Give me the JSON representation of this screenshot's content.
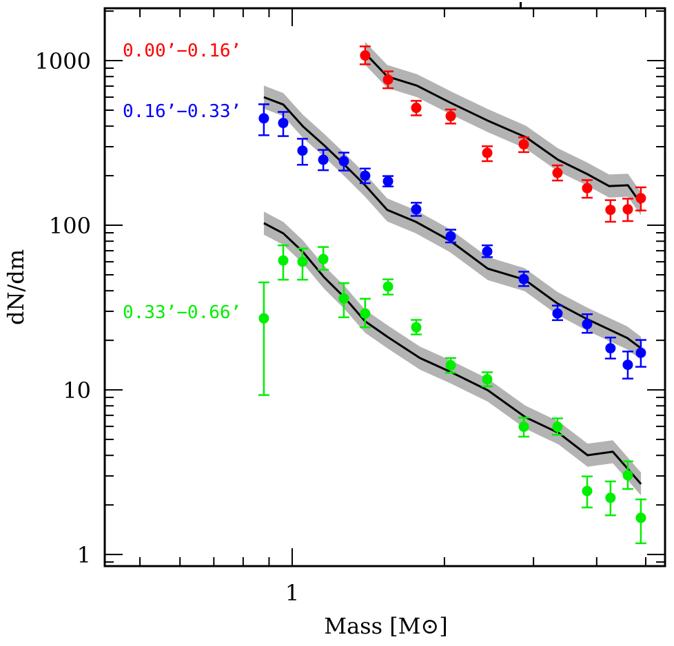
{
  "chart_data": {
    "type": "scatter",
    "title": "",
    "xlabel": "Mass [M⊙]",
    "ylabel": "dN/dm",
    "xscale": "log",
    "yscale": "log",
    "xlim": [
      0.426,
      5.46
    ],
    "ylim": [
      0.85,
      2080
    ],
    "x_ticks": [
      {
        "value": 1,
        "label": "1"
      }
    ],
    "x_minor_ticks": [
      0.5,
      0.6,
      0.7,
      0.8,
      0.9,
      2,
      3,
      4,
      5
    ],
    "y_ticks": [
      {
        "value": 1,
        "label": "1"
      },
      {
        "value": 10,
        "label": "10"
      },
      {
        "value": 100,
        "label": "100"
      },
      {
        "value": 1000,
        "label": "1000"
      }
    ],
    "grid": false,
    "legend_placement": "left, inline beside each series",
    "series": [
      {
        "name": "0.00’−0.16’",
        "color": "#ff0000",
        "points": [
          {
            "x": 1.394,
            "y": 1075,
            "lo": 950,
            "hi": 1220
          },
          {
            "x": 1.547,
            "y": 767,
            "lo": 680,
            "hi": 860
          },
          {
            "x": 1.759,
            "y": 517,
            "lo": 465,
            "hi": 570
          },
          {
            "x": 2.058,
            "y": 460,
            "lo": 415,
            "hi": 505
          },
          {
            "x": 2.43,
            "y": 275,
            "lo": 245,
            "hi": 302
          },
          {
            "x": 2.87,
            "y": 310,
            "lo": 278,
            "hi": 342
          },
          {
            "x": 3.346,
            "y": 208,
            "lo": 187,
            "hi": 231
          },
          {
            "x": 3.83,
            "y": 168,
            "lo": 147,
            "hi": 188
          },
          {
            "x": 4.259,
            "y": 124,
            "lo": 105,
            "hi": 142
          },
          {
            "x": 4.608,
            "y": 125,
            "lo": 106,
            "hi": 145
          },
          {
            "x": 4.891,
            "y": 146,
            "lo": 123,
            "hi": 170
          }
        ],
        "model": {
          "x": [
            1.394,
            1.541,
            1.764,
            2.056,
            2.436,
            2.901,
            3.352,
            3.838,
            4.232,
            4.61,
            4.894
          ],
          "y": [
            1109,
            802,
            705,
            555,
            432,
            342,
            250,
            204,
            173,
            175,
            135
          ],
          "band_dex": 0.07
        }
      },
      {
        "name": "0.16’−0.33’",
        "color": "#0000ff",
        "points": [
          {
            "x": 0.879,
            "y": 446,
            "lo": 352,
            "hi": 543
          },
          {
            "x": 0.96,
            "y": 418,
            "lo": 348,
            "hi": 488
          },
          {
            "x": 1.048,
            "y": 284,
            "lo": 233,
            "hi": 335
          },
          {
            "x": 1.152,
            "y": 250,
            "lo": 216,
            "hi": 287
          },
          {
            "x": 1.265,
            "y": 245,
            "lo": 215,
            "hi": 276
          },
          {
            "x": 1.394,
            "y": 200,
            "lo": 180,
            "hi": 221
          },
          {
            "x": 1.547,
            "y": 185,
            "lo": 172,
            "hi": 199
          },
          {
            "x": 1.759,
            "y": 125,
            "lo": 114,
            "hi": 137
          },
          {
            "x": 2.058,
            "y": 85.7,
            "lo": 78.6,
            "hi": 94.0
          },
          {
            "x": 2.43,
            "y": 69.3,
            "lo": 64.0,
            "hi": 75.5
          },
          {
            "x": 2.87,
            "y": 47.1,
            "lo": 42.7,
            "hi": 52.2
          },
          {
            "x": 3.346,
            "y": 29.1,
            "lo": 26.5,
            "hi": 32.5
          },
          {
            "x": 3.83,
            "y": 25.1,
            "lo": 22.2,
            "hi": 28.8
          },
          {
            "x": 4.259,
            "y": 17.9,
            "lo": 15.5,
            "hi": 20.8
          },
          {
            "x": 4.608,
            "y": 14.2,
            "lo": 11.7,
            "hi": 17.1
          },
          {
            "x": 4.891,
            "y": 16.8,
            "lo": 13.8,
            "hi": 20.1
          }
        ],
        "model": {
          "x": [
            0.879,
            0.96,
            1.051,
            1.155,
            1.269,
            1.394,
            1.541,
            1.755,
            2.052,
            2.436,
            2.882,
            3.345,
            3.83,
            4.593,
            4.894
          ],
          "y": [
            600,
            541,
            398,
            307,
            233,
            175,
            124,
            105,
            80.6,
            54.5,
            46.7,
            33.5,
            26.9,
            20.7,
            17.9
          ],
          "band_dex": 0.07
        }
      },
      {
        "name": "0.33’−0.66’",
        "color": "#00ee00",
        "points": [
          {
            "x": 0.879,
            "y": 27.2,
            "lo": 9.3,
            "hi": 45.0
          },
          {
            "x": 0.96,
            "y": 61.1,
            "lo": 46.7,
            "hi": 75.5
          },
          {
            "x": 1.048,
            "y": 60.0,
            "lo": 46.7,
            "hi": 72.2
          },
          {
            "x": 1.152,
            "y": 62.3,
            "lo": 53.6,
            "hi": 73.8
          },
          {
            "x": 1.265,
            "y": 35.9,
            "lo": 27.6,
            "hi": 44.5
          },
          {
            "x": 1.394,
            "y": 29.1,
            "lo": 24.0,
            "hi": 35.8
          },
          {
            "x": 1.547,
            "y": 42.4,
            "lo": 37.9,
            "hi": 46.9
          },
          {
            "x": 1.759,
            "y": 24.0,
            "lo": 21.7,
            "hi": 26.6
          },
          {
            "x": 2.058,
            "y": 14.1,
            "lo": 12.7,
            "hi": 15.6
          },
          {
            "x": 2.43,
            "y": 11.6,
            "lo": 10.5,
            "hi": 12.8
          },
          {
            "x": 2.87,
            "y": 5.97,
            "lo": 5.2,
            "hi": 6.78
          },
          {
            "x": 3.346,
            "y": 5.97,
            "lo": 5.33,
            "hi": 6.71
          },
          {
            "x": 3.83,
            "y": 2.43,
            "lo": 1.93,
            "hi": 2.98
          },
          {
            "x": 4.259,
            "y": 2.21,
            "lo": 1.73,
            "hi": 2.78
          },
          {
            "x": 4.608,
            "y": 3.03,
            "lo": 2.5,
            "hi": 3.68
          },
          {
            "x": 4.891,
            "y": 1.67,
            "lo": 1.17,
            "hi": 2.16
          }
        ],
        "model": {
          "x": [
            0.879,
            0.96,
            1.051,
            1.155,
            1.269,
            1.394,
            1.547,
            1.789,
            2.052,
            2.436,
            2.89,
            3.365,
            3.838,
            4.305,
            4.894
          ],
          "y": [
            103,
            89.3,
            68.7,
            48.5,
            36.4,
            26.1,
            20.9,
            15.6,
            12.9,
            9.95,
            6.83,
            5.47,
            4.01,
            4.21,
            2.68
          ],
          "band_dex": 0.07
        }
      }
    ]
  }
}
